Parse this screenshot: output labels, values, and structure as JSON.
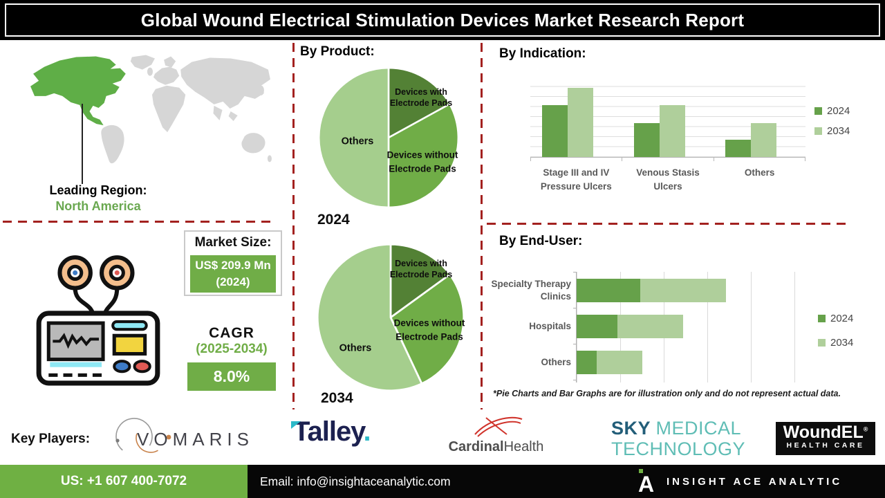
{
  "palette": {
    "dark_green": "#538135",
    "mid_green": "#70AD47",
    "light_green": "#A5CE8D",
    "series_2024": "#66A14A",
    "series_2034": "#AFCF9B",
    "dash_red": "#A3211F",
    "footer_green": "#6FB043",
    "region_green": "#6AA850"
  },
  "title": "Global Wound Electrical Stimulation Devices Market Research Report",
  "leading_region": {
    "label": "Leading Region:",
    "value": "North America"
  },
  "market_size": {
    "label": "Market Size:",
    "value": "US$ 209.9 Mn (2024)"
  },
  "cagr": {
    "label": "CAGR",
    "period": "(2025-2034)",
    "value": "8.0%"
  },
  "sections": {
    "by_product": "By Product:",
    "by_indication": "By Indication:",
    "by_end_user": "By End-User:"
  },
  "chart_data": [
    {
      "type": "pie",
      "year": "2024",
      "labels": [
        "Devices with Electrode Pads",
        "Devices without Electrode Pads",
        "Others"
      ],
      "values": [
        17,
        33,
        50
      ],
      "colors": [
        "#538135",
        "#70AD47",
        "#A5CE8D"
      ]
    },
    {
      "type": "pie",
      "year": "2034",
      "labels": [
        "Devices with Electrode Pads",
        "Devices without Electrode Pads",
        "Others"
      ],
      "values": [
        15,
        28,
        57
      ],
      "colors": [
        "#538135",
        "#70AD47",
        "#A5CE8D"
      ]
    },
    {
      "type": "bar",
      "title": "By Indication:",
      "categories": [
        "Stage III and IV\nPressure Ulcers",
        "Venous Stasis\nUlcers",
        "Others"
      ],
      "series": [
        {
          "name": "2024",
          "color": "#66A14A",
          "values": [
            65,
            43,
            22
          ]
        },
        {
          "name": "2034",
          "color": "#AFCF9B",
          "values": [
            87,
            65,
            43
          ]
        }
      ],
      "ylim": [
        0,
        100
      ],
      "grid": true,
      "legend_position": "right"
    },
    {
      "type": "stacked-bar-horizontal",
      "title": "By End-User:",
      "categories": [
        "Specialty Therapy\nClinics",
        "Hospitals",
        "Others"
      ],
      "series": [
        {
          "name": "2024",
          "color": "#66A14A",
          "values": [
            28,
            18,
            9
          ]
        },
        {
          "name": "2034",
          "color": "#AFCF9B",
          "values": [
            38,
            29,
            20
          ]
        }
      ],
      "xlim": [
        0,
        100
      ],
      "grid": true,
      "legend_position": "right"
    }
  ],
  "footnote": "*Pie Charts and Bar Graphs are for illustration only and do not represent actual data.",
  "key_players": {
    "label": "Key Players:",
    "vomaris": "VOMARIS",
    "talley": "Talley",
    "talley_dot": ".",
    "cardinal_bold": "Cardinal",
    "cardinal_light": "Health",
    "sky_line1_a": "SKY ",
    "sky_line1_b": "MEDICAL",
    "sky_line2": "TECHNOLOGY",
    "woundel": "WoundEL",
    "woundel_reg": "®",
    "woundel_sub": "HEALTH CARE"
  },
  "footer": {
    "phone": "US: +1 607 400-7072",
    "email": "Email: info@insightaceanalytic.com",
    "brand": "INSIGHT ACE ANALYTIC"
  }
}
